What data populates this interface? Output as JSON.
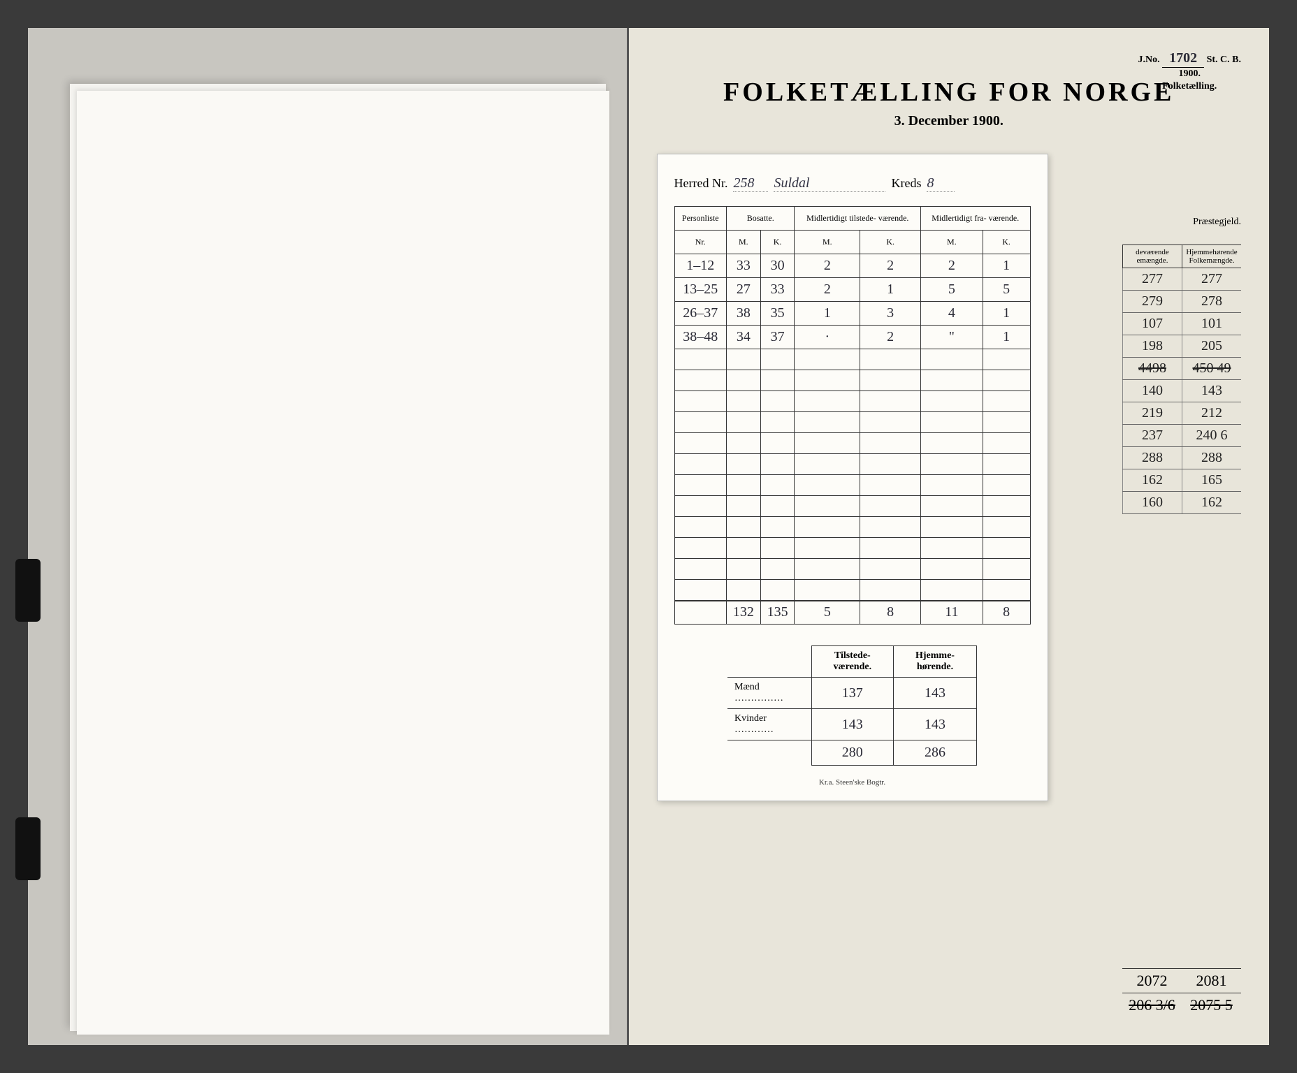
{
  "stamp": {
    "jno_label": "J.No.",
    "jno": "1702",
    "scb": "St. C. B.",
    "year": "1900.",
    "sub": "Folketælling."
  },
  "title": "FOLKETÆLLING FOR NORGE",
  "date": "3. December 1900.",
  "herred": {
    "label": "Herred Nr.",
    "nr": "258",
    "name": "Suldal",
    "kreds_label": "Kreds",
    "kreds": "8"
  },
  "table": {
    "headers": {
      "personliste": "Personliste",
      "nr": "Nr.",
      "bosatte": "Bosatte.",
      "tilstede": "Midlertidigt tilstede-\nværende.",
      "fravaer": "Midlertidigt fra-\nværende.",
      "m": "M.",
      "k": "K."
    },
    "rows": [
      {
        "nr": "1–12",
        "bm": "33",
        "bk": "30",
        "tm": "2",
        "tk": "2",
        "fm": "2",
        "fk": "1"
      },
      {
        "nr": "13–25",
        "bm": "27",
        "bk": "33",
        "tm": "2",
        "tk": "1",
        "fm": "5",
        "fk": "5"
      },
      {
        "nr": "26–37",
        "bm": "38",
        "bk": "35",
        "tm": "1",
        "tk": "3",
        "fm": "4",
        "fk": "1"
      },
      {
        "nr": "38–48",
        "bm": "34",
        "bk": "37",
        "tm": "·",
        "tk": "2",
        "fm": "\"",
        "fk": "1"
      }
    ],
    "totals": {
      "bm": "132",
      "bk": "135",
      "tm": "5",
      "tk": "8",
      "fm": "11",
      "fk": "8"
    }
  },
  "summary": {
    "h1": "Tilstede-\nværende.",
    "h2": "Hjemme-\nhørende.",
    "maend_label": "Mænd ……………",
    "kvinder_label": "Kvinder …………",
    "maend": {
      "t": "137",
      "h": "143"
    },
    "kvinder": {
      "t": "143",
      "h": "143"
    },
    "total": {
      "t": "280",
      "h": "286"
    }
  },
  "side": {
    "praest": "Præstegjeld.",
    "h1": "deværende\nemængde.",
    "h2": "Hjemmehørende\nFolkemængde.",
    "rows": [
      {
        "a": "277",
        "b": "277"
      },
      {
        "a": "279",
        "b": "278"
      },
      {
        "a": "107",
        "b": "101"
      },
      {
        "a": "198",
        "b": "205"
      },
      {
        "a": "4498",
        "b": "450 49",
        "astrike": true,
        "bstrike": true
      },
      {
        "a": "140",
        "b": "143"
      },
      {
        "a": "219",
        "b": "212"
      },
      {
        "a": "237",
        "b": "240 6"
      },
      {
        "a": "288",
        "b": "288"
      },
      {
        "a": "162",
        "b": "165"
      },
      {
        "a": "160",
        "b": "162"
      }
    ]
  },
  "bottom_totals": {
    "rows": [
      {
        "a": "2072",
        "b": "2081"
      },
      {
        "a": "206 3/6",
        "b": "2075 5",
        "astrike": true,
        "bstrike": true
      }
    ]
  },
  "footer": "Kr.a.  Steen'ske Bogtr.",
  "colors": {
    "paper": "#e8e5da",
    "overlay": "#fdfcf8",
    "ink": "#2a2a35",
    "border": "#333333"
  }
}
